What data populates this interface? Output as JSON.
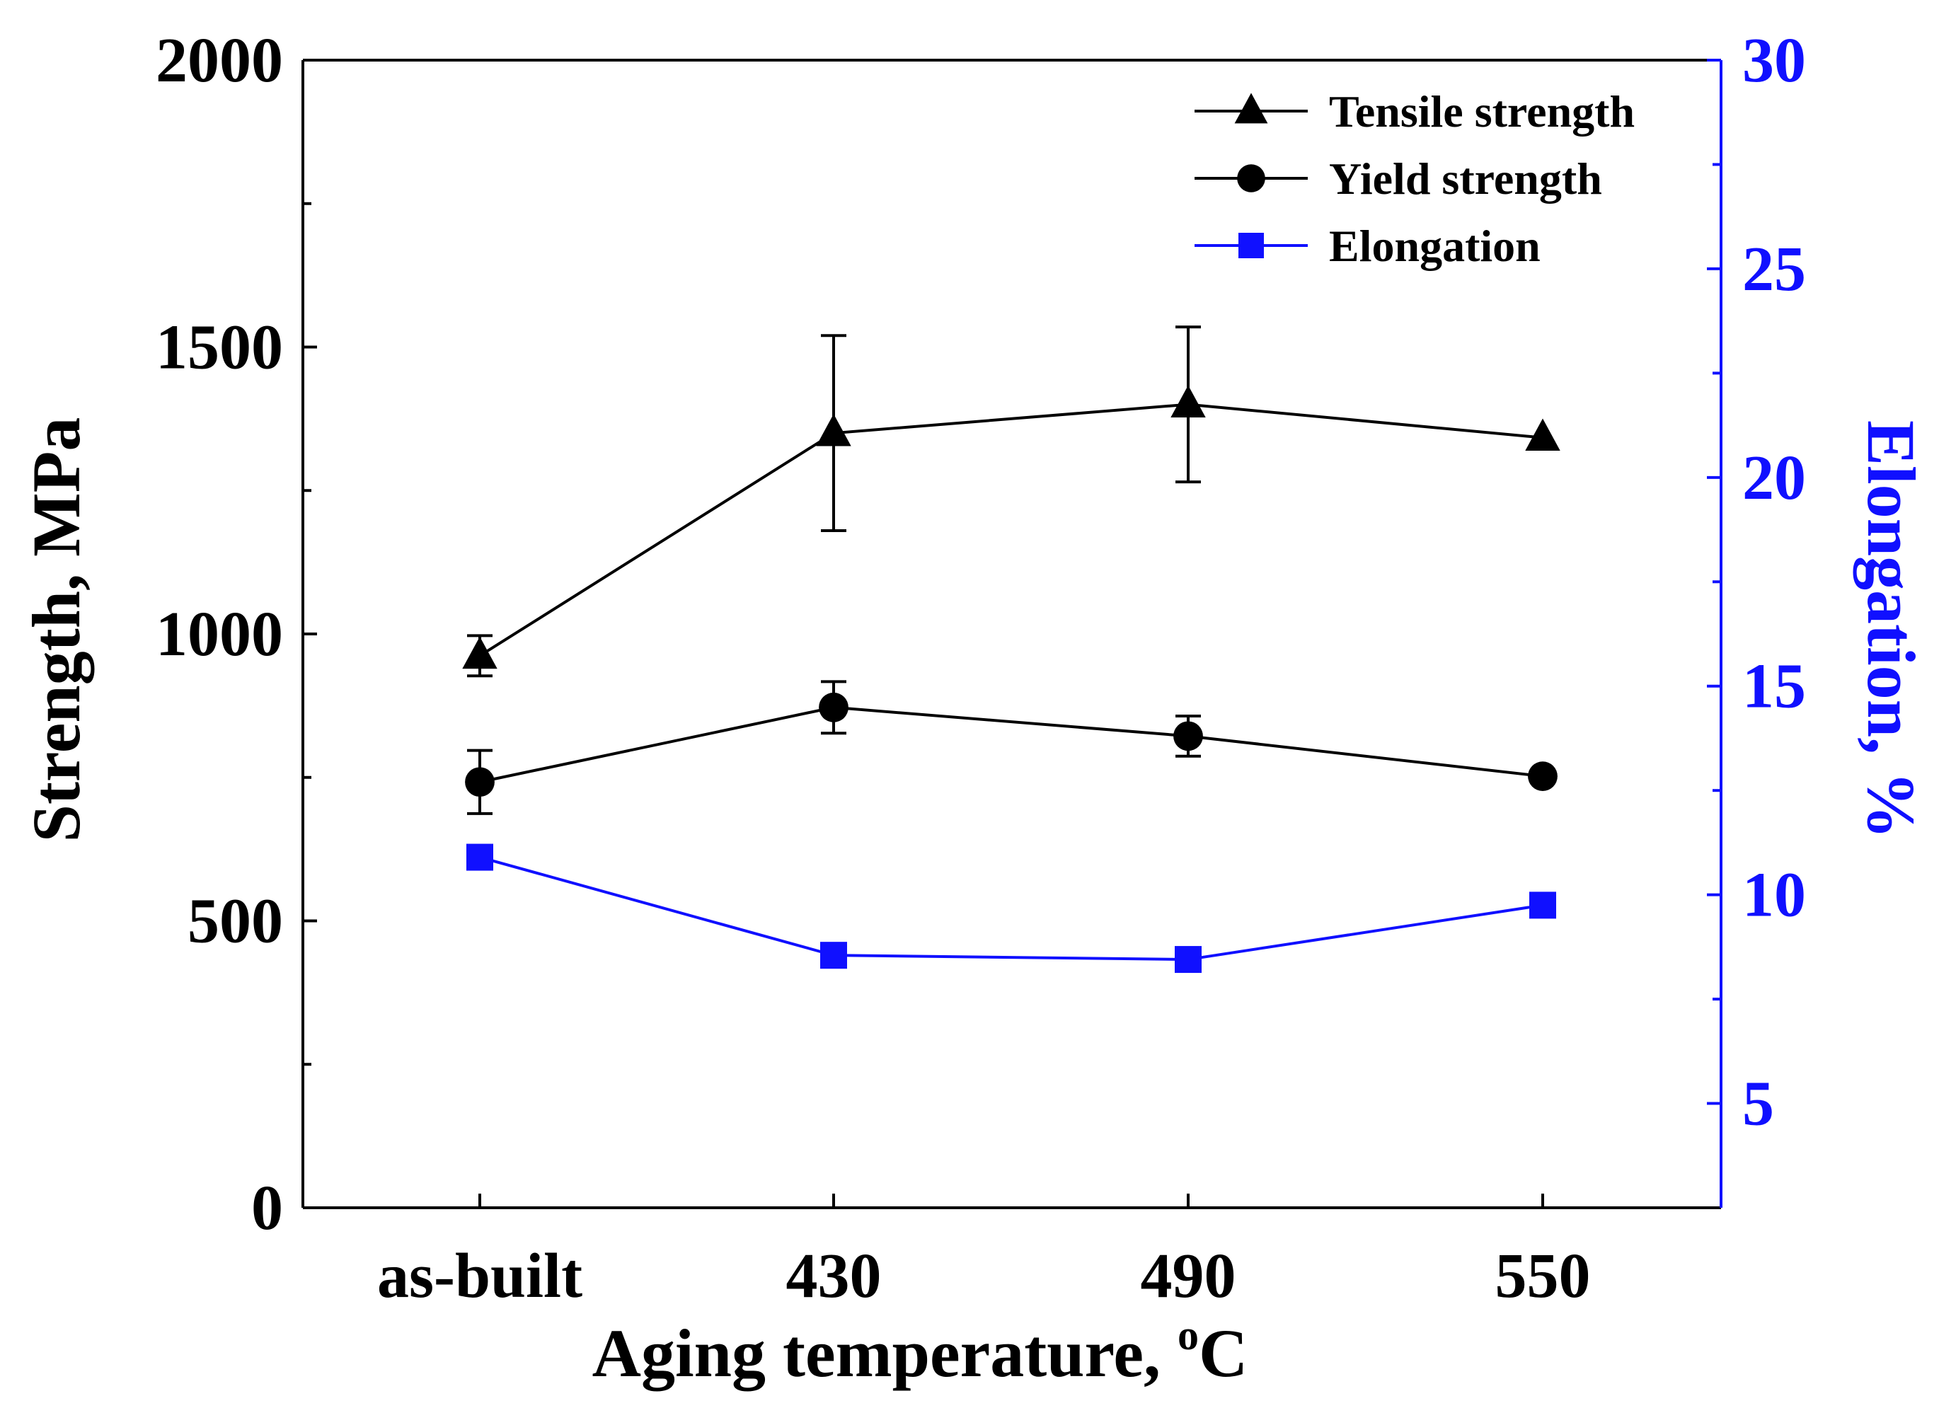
{
  "chart_data": {
    "type": "line",
    "x_title_prefix": "Aging temperature, ",
    "x_title_sup": "o",
    "x_title_suffix": "C",
    "y_title": "Strength, MPa",
    "y2_title": "Elongation, %",
    "categories": [
      "as-built",
      "430",
      "490",
      "550"
    ],
    "ylim": [
      0,
      2000
    ],
    "y_ticks": [
      0,
      500,
      1000,
      1500,
      2000
    ],
    "y_minor_ticks": [
      250,
      750,
      1250,
      1750
    ],
    "y2lim": [
      2.5,
      30
    ],
    "y2_ticks": [
      5,
      10,
      15,
      20,
      25,
      30
    ],
    "y2_minor_ticks": [
      7.5,
      12.5,
      17.5,
      22.5,
      27.5
    ],
    "grid": false,
    "legend_position": "top-right",
    "series": [
      {
        "name": "Tensile strength",
        "axis": "left",
        "marker": "triangle",
        "color": "#000000",
        "values": [
          962,
          1350,
          1400,
          1342
        ],
        "errors": [
          35,
          170,
          135,
          0
        ]
      },
      {
        "name": "Yield strength",
        "axis": "left",
        "marker": "circle",
        "color": "#000000",
        "values": [
          742,
          872,
          822,
          752
        ],
        "errors": [
          55,
          45,
          35,
          0
        ]
      },
      {
        "name": "Elongation",
        "axis": "right",
        "marker": "square",
        "color": "#1010ff",
        "values": [
          10.9,
          8.55,
          8.45,
          9.75
        ],
        "errors": [
          0,
          0,
          0,
          0
        ]
      }
    ]
  }
}
